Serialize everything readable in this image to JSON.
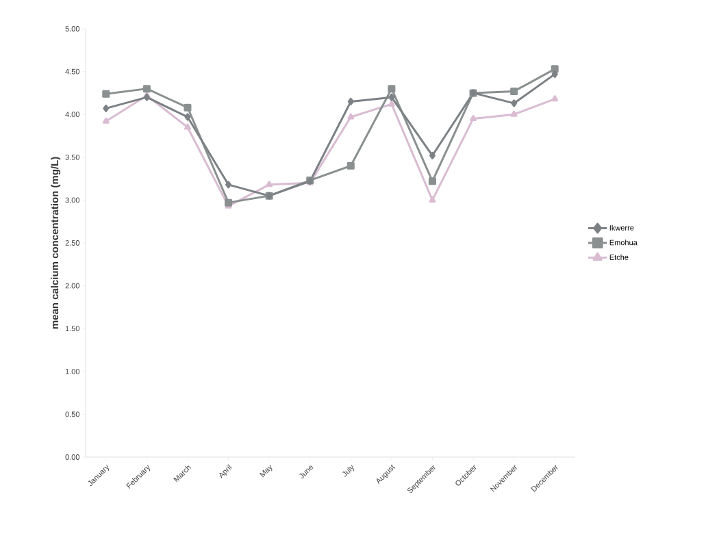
{
  "chart_data": {
    "type": "line",
    "ylabel": "mean calcium concentration  (mg/L)",
    "categories": [
      "January",
      "February",
      "March",
      "April",
      "May",
      "June",
      "July",
      "August",
      "September",
      "October",
      "November",
      "December"
    ],
    "series": [
      {
        "name": "Ikwerre",
        "color": "#7c8185",
        "marker": "diamond",
        "values": [
          4.07,
          4.2,
          3.97,
          3.18,
          3.05,
          3.22,
          4.15,
          4.2,
          3.52,
          4.25,
          4.13,
          4.47
        ]
      },
      {
        "name": "Emohua",
        "color": "#8a9090",
        "marker": "square",
        "values": [
          4.24,
          4.3,
          4.08,
          2.97,
          3.05,
          3.23,
          3.4,
          4.3,
          3.22,
          4.25,
          4.27,
          4.53
        ]
      },
      {
        "name": "Etche",
        "color": "#d9bcd2",
        "marker": "triangle",
        "values": [
          3.92,
          4.22,
          3.85,
          2.93,
          3.18,
          3.2,
          3.97,
          4.12,
          3.0,
          3.95,
          4.0,
          4.18
        ]
      }
    ],
    "ylim": [
      0,
      5
    ],
    "yticks": [
      {
        "value": 0,
        "label": "0.00"
      },
      {
        "value": 0.5,
        "label": "0.50"
      },
      {
        "value": 1,
        "label": "1.00"
      },
      {
        "value": 1.5,
        "label": "1.50"
      },
      {
        "value": 2,
        "label": "2.00"
      },
      {
        "value": 2.5,
        "label": "2.50"
      },
      {
        "value": 3,
        "label": "3.00"
      },
      {
        "value": 3.5,
        "label": "3.50"
      },
      {
        "value": 4,
        "label": "4.00"
      },
      {
        "value": 4.5,
        "label": "4.50"
      },
      {
        "value": 5,
        "label": "5.00"
      }
    ],
    "grid": false,
    "legend": "right",
    "line_style": "solid"
  }
}
